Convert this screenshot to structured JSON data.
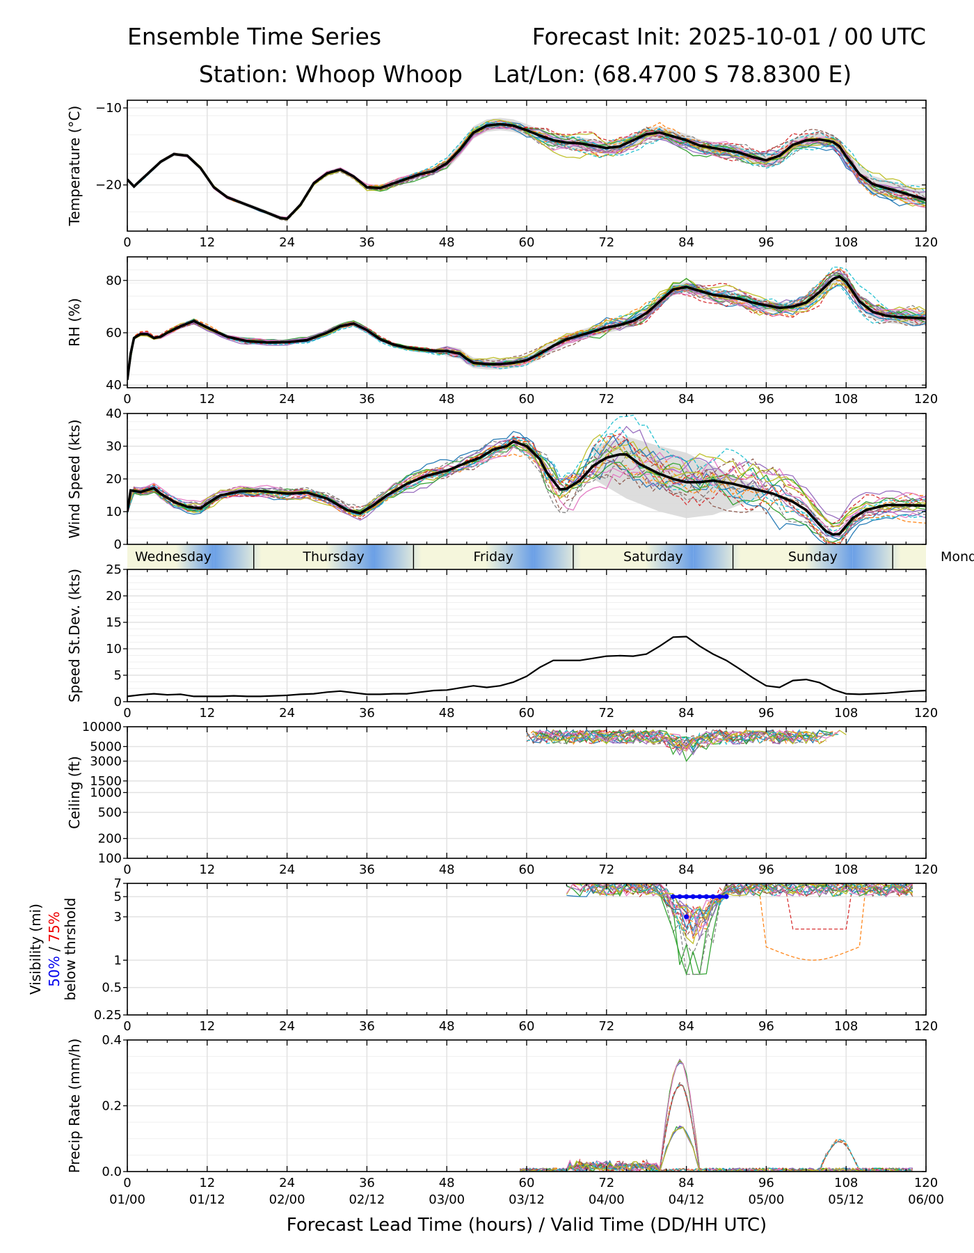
{
  "header": {
    "title_left": "Ensemble Time Series",
    "title_right": "Forecast Init: 2025-10-01 / 00 UTC",
    "station_line": "Station: Whoop Whoop",
    "latlon_line": "Lat/Lon: (68.4700 S 78.8300 E)"
  },
  "x_axis": {
    "ticks": [
      0,
      12,
      24,
      36,
      48,
      60,
      72,
      84,
      96,
      108,
      120
    ],
    "tick_labels": [
      "0",
      "12",
      "24",
      "36",
      "48",
      "60",
      "72",
      "84",
      "96",
      "108",
      "120"
    ],
    "valid_labels": [
      "01/00",
      "01/12",
      "02/00",
      "02/12",
      "03/00",
      "03/12",
      "04/00",
      "04/12",
      "05/00",
      "05/12",
      "06/00"
    ],
    "label": "Forecast Lead Time (hours) / Valid Time (DD/HH UTC)"
  },
  "day_bar": {
    "days": [
      "Wednesday",
      "Thursday",
      "Friday",
      "Saturday",
      "Sunday",
      "Monday"
    ],
    "boundaries_hours": [
      0,
      19,
      43,
      67,
      91,
      115,
      139
    ],
    "colors": {
      "day": "#f5f6dc",
      "night": "#6a9fe6"
    }
  },
  "chart_data": [
    {
      "id": "temperature",
      "type": "line",
      "ylabel": "Temperature (°C)",
      "ylim": [
        -26,
        -9
      ],
      "yticks": [
        -20,
        -10
      ],
      "ytick_labels": [
        "−20",
        "−10"
      ],
      "mean_series": {
        "x": [
          0,
          1,
          3,
          5,
          7,
          9,
          11,
          13,
          15,
          18,
          21,
          23,
          24,
          26,
          28,
          30,
          32,
          34,
          36,
          38,
          40,
          42,
          44,
          46,
          48,
          50,
          52,
          54,
          56,
          58,
          60,
          62,
          64,
          66,
          68,
          70,
          72,
          74,
          76,
          78,
          80,
          82,
          84,
          86,
          88,
          90,
          92,
          94,
          96,
          98,
          100,
          102,
          104,
          106,
          107,
          108,
          110,
          112,
          114,
          116,
          118,
          120
        ],
        "y": [
          -19.3,
          -20.2,
          -18.6,
          -17.0,
          -16.0,
          -16.2,
          -17.8,
          -20.3,
          -21.6,
          -22.6,
          -23.6,
          -24.3,
          -24.4,
          -22.6,
          -19.8,
          -18.5,
          -18.0,
          -18.9,
          -20.3,
          -20.4,
          -19.8,
          -19.2,
          -18.6,
          -18.2,
          -17.2,
          -15.4,
          -13.2,
          -12.3,
          -12.1,
          -12.3,
          -12.9,
          -13.6,
          -14.2,
          -14.5,
          -14.6,
          -14.9,
          -15.2,
          -15.0,
          -14.2,
          -13.4,
          -13.2,
          -13.7,
          -14.2,
          -14.9,
          -15.2,
          -15.5,
          -15.8,
          -16.4,
          -16.8,
          -16.2,
          -14.8,
          -14.2,
          -14.1,
          -14.4,
          -15.0,
          -16.3,
          -18.6,
          -19.9,
          -20.4,
          -20.9,
          -21.4,
          -21.9
        ]
      },
      "member_spread_deg": 1.8
    },
    {
      "id": "relative_humidity",
      "type": "line",
      "ylabel": "RH (%)",
      "ylim": [
        39,
        89
      ],
      "yticks": [
        40,
        60,
        80
      ],
      "ytick_labels": [
        "40",
        "60",
        "80"
      ],
      "mean_series": {
        "x": [
          0,
          0.5,
          1,
          2,
          3,
          4,
          5,
          6,
          8,
          10,
          12,
          15,
          18,
          21,
          24,
          27,
          30,
          32,
          34,
          36,
          38,
          40,
          42,
          44,
          46,
          48,
          50,
          51,
          52,
          54,
          56,
          58,
          60,
          62,
          64,
          66,
          68,
          70,
          72,
          74,
          76,
          78,
          80,
          82,
          84,
          86,
          88,
          90,
          92,
          94,
          96,
          98,
          100,
          102,
          104,
          106,
          107,
          108,
          110,
          112,
          114,
          116,
          118,
          120
        ],
        "y": [
          42,
          52,
          58,
          59.5,
          59.5,
          58,
          58.5,
          60,
          62.5,
          64.5,
          62,
          58.5,
          56.8,
          56.3,
          56.4,
          57.2,
          60,
          62.5,
          63.5,
          61,
          57.5,
          55.5,
          54.3,
          53.6,
          53.1,
          53,
          52,
          50,
          48.5,
          48,
          48,
          48.5,
          49.5,
          52,
          55,
          57.5,
          59,
          60.5,
          62,
          63,
          64.5,
          67.5,
          72,
          76.5,
          77.5,
          76,
          74.5,
          73.8,
          73,
          71.5,
          70.5,
          69.5,
          70,
          71.5,
          75.5,
          80.5,
          81.5,
          79.5,
          72,
          68,
          66.5,
          66,
          65.7,
          65.5
        ]
      },
      "member_spread_pct": 4.5
    },
    {
      "id": "wind_speed",
      "type": "line",
      "ylabel": "Wind Speed (kts)",
      "ylim": [
        0,
        40
      ],
      "yticks": [
        0,
        10,
        20,
        30,
        40
      ],
      "ytick_labels": [
        "0",
        "10",
        "20",
        "30",
        "40"
      ],
      "mean_series": {
        "x": [
          0,
          0.5,
          2,
          4,
          5,
          7,
          9,
          11,
          12,
          14,
          17,
          20,
          24,
          27,
          30,
          33,
          35,
          37,
          39,
          42,
          45,
          48,
          51,
          53,
          55,
          57,
          58,
          60,
          62,
          63,
          65,
          66,
          68,
          70,
          72,
          74,
          75,
          77,
          80,
          82,
          84,
          86,
          88,
          91,
          94,
          97,
          100,
          102,
          104,
          105,
          106,
          107,
          109,
          111,
          114,
          117,
          120
        ],
        "y": [
          10,
          16.5,
          16,
          17.2,
          15.5,
          13,
          11.5,
          11,
          12.5,
          15,
          16.2,
          16.3,
          15.5,
          15.8,
          14,
          10.5,
          9.5,
          12,
          15,
          18.5,
          21,
          22.5,
          25,
          26.5,
          29,
          30,
          31.5,
          30,
          26,
          22,
          16.8,
          17,
          19.5,
          24,
          26.5,
          27.5,
          27.5,
          24.5,
          21.5,
          20,
          19,
          19,
          19.5,
          18.5,
          17,
          15.5,
          13,
          10.5,
          6,
          4,
          3,
          3.2,
          8,
          10.5,
          12,
          12,
          11.8
        ]
      },
      "member_spread_kts": 6,
      "band": {
        "x": [
          70,
          75,
          80,
          84,
          88,
          92,
          96
        ],
        "lower": [
          20,
          14,
          10,
          8,
          9,
          12,
          15
        ],
        "upper": [
          30,
          33,
          30,
          28,
          24,
          20,
          17
        ]
      }
    },
    {
      "id": "speed_stdev",
      "type": "line",
      "ylabel": "Speed St.Dev. (kts)",
      "ylim": [
        0,
        25
      ],
      "yticks": [
        0,
        5,
        10,
        15,
        20,
        25
      ],
      "ytick_labels": [
        "0",
        "5",
        "10",
        "15",
        "20",
        "25"
      ],
      "series": {
        "x": [
          0,
          2,
          4,
          6,
          8,
          10,
          12,
          14,
          16,
          18,
          20,
          22,
          24,
          26,
          28,
          30,
          32,
          34,
          36,
          38,
          40,
          42,
          44,
          46,
          48,
          50,
          52,
          54,
          56,
          58,
          60,
          62,
          64,
          66,
          68,
          70,
          72,
          74,
          76,
          78,
          80,
          82,
          84,
          86,
          88,
          90,
          92,
          94,
          96,
          98,
          100,
          102,
          104,
          106,
          108,
          110,
          112,
          114,
          116,
          118,
          120
        ],
        "y": [
          1,
          1.3,
          1.5,
          1.3,
          1.4,
          1.0,
          1.0,
          1.0,
          1.1,
          1.0,
          1.0,
          1.1,
          1.2,
          1.4,
          1.5,
          1.8,
          2.0,
          1.7,
          1.4,
          1.4,
          1.5,
          1.5,
          1.8,
          2.1,
          2.2,
          2.6,
          3.0,
          2.7,
          3.0,
          3.7,
          4.8,
          6.5,
          7.8,
          7.8,
          7.8,
          8.2,
          8.6,
          8.7,
          8.6,
          9.0,
          10.5,
          12.2,
          12.3,
          10.5,
          9.0,
          7.8,
          6.2,
          4.5,
          3.0,
          2.7,
          4.0,
          4.2,
          3.6,
          2.3,
          1.5,
          1.4,
          1.5,
          1.6,
          1.8,
          2.0,
          2.1
        ]
      }
    },
    {
      "id": "ceiling",
      "type": "line",
      "yscale": "log",
      "ylabel": "Ceiling (ft)",
      "ylim": [
        100,
        10000
      ],
      "yticks": [
        100,
        200,
        500,
        1000,
        1500,
        3000,
        5000,
        10000
      ],
      "ytick_labels": [
        "100",
        "200",
        "500",
        "1000",
        "1500",
        "3000",
        "5000",
        "10000"
      ],
      "member_range_hours": [
        60,
        108
      ],
      "member_typical_ft": [
        5000,
        9500
      ],
      "member_min_ft": 3000
    },
    {
      "id": "visibility",
      "type": "line",
      "yscale": "log",
      "ylabel_lines": [
        "Visibility (mi)",
        "50% / 75%",
        "below thrshold"
      ],
      "legend": {
        "p50": "50%",
        "p75": "75%",
        "p50_color": "#0000ee",
        "p75_color": "#ee0000"
      },
      "ylim": [
        0.25,
        7
      ],
      "yticks": [
        0.25,
        0.5,
        1,
        3,
        5,
        7
      ],
      "ytick_labels": [
        "0.25",
        "0.5",
        "1",
        "3",
        "5",
        "7"
      ],
      "threshold_markers": {
        "x": [
          82,
          83,
          84,
          85,
          86,
          87,
          88,
          89,
          90
        ],
        "y": [
          5,
          5,
          5,
          5,
          5,
          5,
          5,
          5,
          5
        ],
        "extra_point": {
          "x": 84,
          "y": 3
        }
      },
      "member_min_mi": 0.7
    },
    {
      "id": "precip_rate",
      "type": "line",
      "ylabel": "Precip Rate (mm/h)",
      "ylim": [
        0,
        0.4
      ],
      "yticks": [
        0,
        0.2,
        0.4
      ],
      "ytick_labels": [
        "0.0",
        "0.2",
        "0.4"
      ],
      "peaks": [
        {
          "x": 83,
          "y": 0.33,
          "member": "green"
        },
        {
          "x": 83,
          "y": 0.26,
          "member": "pink"
        },
        {
          "x": 83,
          "y": 0.13,
          "member": "gray"
        },
        {
          "x": 107,
          "y": 0.09,
          "member": "orange"
        }
      ]
    }
  ],
  "colors": {
    "members": [
      "#1f77b4",
      "#ff7f0e",
      "#2ca02c",
      "#d62728",
      "#9467bd",
      "#8c564b",
      "#e377c2",
      "#7f7f7f",
      "#bcbd22",
      "#17becf"
    ],
    "mean": "#000000",
    "spread_band": "#d9d9d9",
    "grid": "#e2e2e2"
  }
}
